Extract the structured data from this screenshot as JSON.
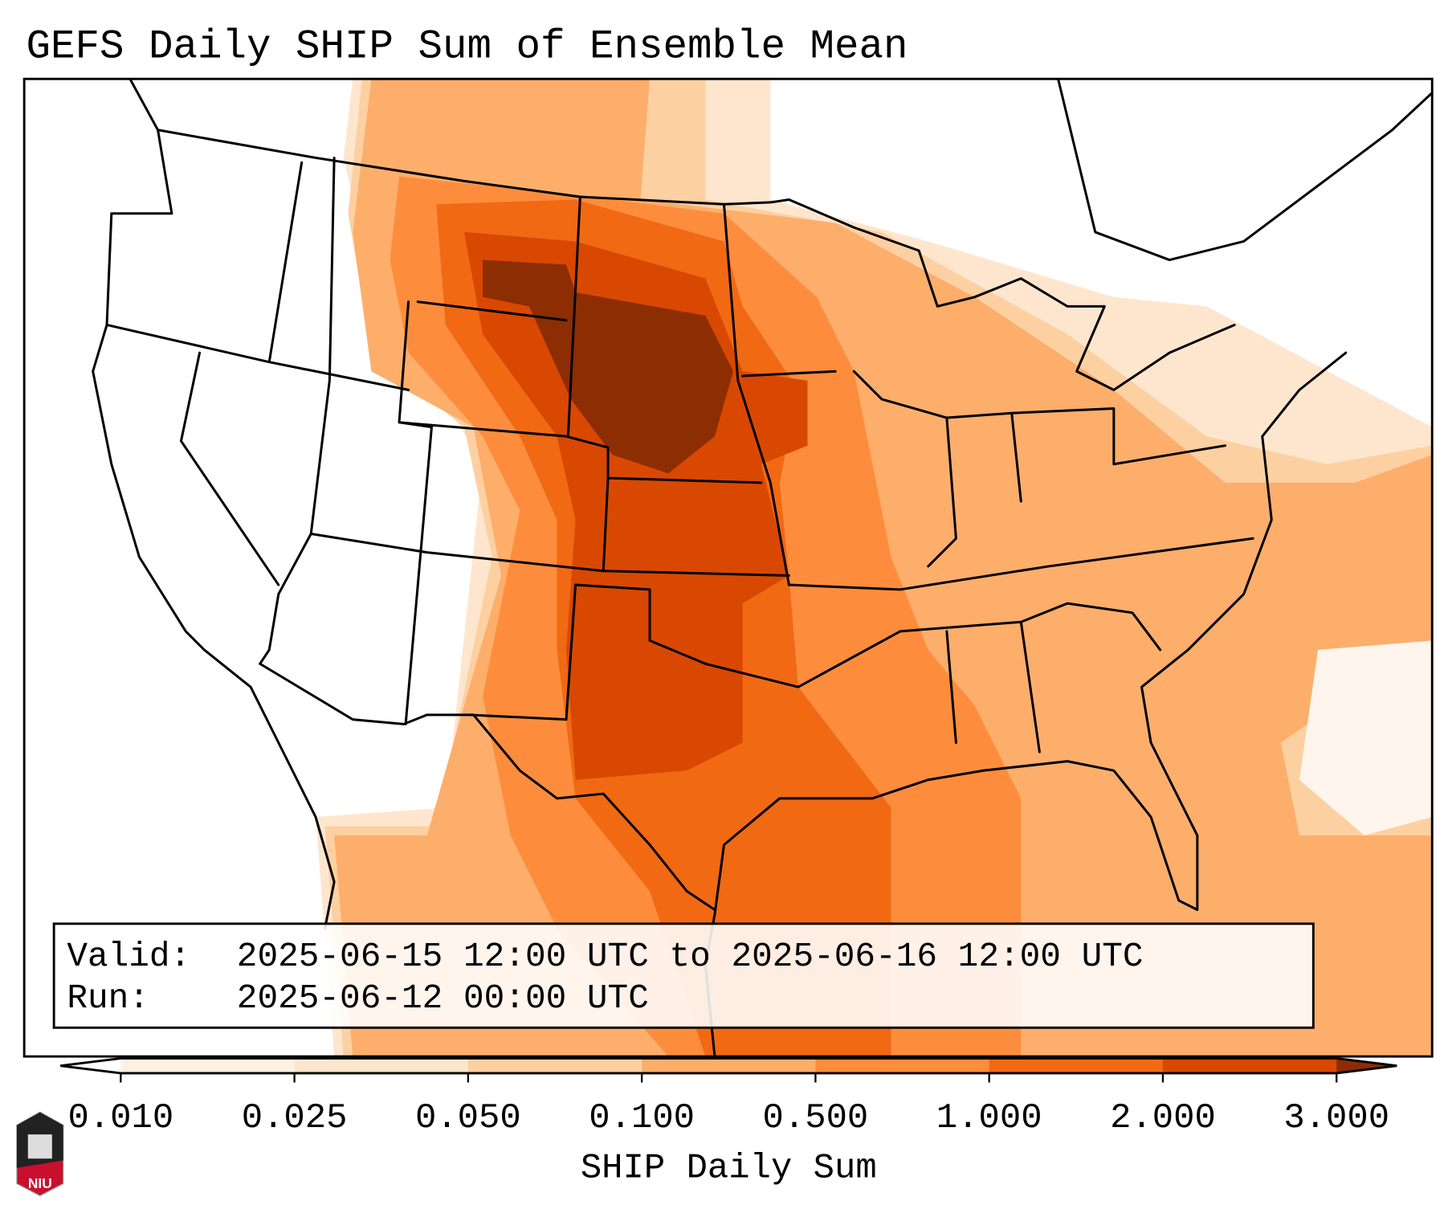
{
  "title": "GEFS Daily SHIP Sum of Ensemble Mean",
  "info": {
    "valid_label": "Valid:",
    "valid_value": "2025-06-15 12:00 UTC to 2025-06-16 12:00 UTC",
    "run_label": "Run:",
    "run_value": "2025-06-12 00:00 UTC"
  },
  "colorbar": {
    "label": "SHIP Daily Sum",
    "ticks": [
      "0.010",
      "0.025",
      "0.050",
      "0.100",
      "0.500",
      "1.000",
      "2.000",
      "3.000"
    ],
    "colors": [
      "#fff0e2",
      "#fee6ce",
      "#fdd0a2",
      "#fdae6b",
      "#fd8d3c",
      "#f16913",
      "#d94801"
    ],
    "extend_min_color": "#ffffff",
    "extend_max_color": "#8c2d04"
  },
  "logo": {
    "text": "NIU"
  }
}
